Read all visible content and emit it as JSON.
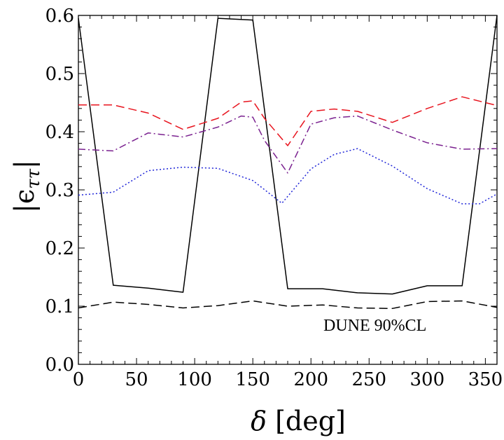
{
  "chart_data": {
    "type": "line",
    "title": "",
    "xlabel": "δ [deg]",
    "ylabel": "|ϵ_ττ|",
    "xlabel_parts": {
      "symbol": "δ",
      "unit": "[deg]"
    },
    "ylabel_parts": {
      "symbol": "ϵ",
      "subscript": "ττ"
    },
    "xlim": [
      0,
      360
    ],
    "ylim": [
      0.0,
      0.6
    ],
    "x_ticks": [
      0,
      50,
      100,
      150,
      200,
      250,
      300,
      350
    ],
    "y_ticks": [
      0.0,
      0.1,
      0.2,
      0.3,
      0.4,
      0.5,
      0.6
    ],
    "x_tick_labels": [
      "0",
      "50",
      "100",
      "150",
      "200",
      "250",
      "300",
      "350"
    ],
    "y_tick_labels": [
      "0.0",
      "0.1",
      "0.2",
      "0.3",
      "0.4",
      "0.5",
      "0.6"
    ],
    "grid": false,
    "annotation": "DUNE  90%CL",
    "series": [
      {
        "color": "#000000",
        "style": "solid",
        "x": [
          0,
          30,
          60,
          90,
          120,
          150,
          180,
          210,
          240,
          270,
          300,
          330,
          360
        ],
        "y": [
          0.595,
          0.136,
          0.131,
          0.124,
          0.595,
          0.592,
          0.13,
          0.13,
          0.123,
          0.121,
          0.135,
          0.135,
          0.6
        ]
      },
      {
        "color": "#000000",
        "style": "dashed",
        "x": [
          0,
          30,
          60,
          90,
          120,
          150,
          180,
          210,
          240,
          270,
          300,
          330,
          360
        ],
        "y": [
          0.097,
          0.107,
          0.103,
          0.097,
          0.101,
          0.109,
          0.1,
          0.102,
          0.097,
          0.096,
          0.108,
          0.109,
          0.098
        ]
      },
      {
        "color": "#e8141e",
        "style": "dashed",
        "x": [
          0,
          30,
          60,
          90,
          120,
          140,
          150,
          160,
          180,
          200,
          220,
          240,
          270,
          300,
          330,
          360
        ],
        "y": [
          0.446,
          0.446,
          0.432,
          0.404,
          0.423,
          0.451,
          0.453,
          0.423,
          0.376,
          0.435,
          0.439,
          0.435,
          0.416,
          0.44,
          0.46,
          0.445
        ]
      },
      {
        "color": "#7b2290",
        "style": "dashdot",
        "x": [
          0,
          30,
          60,
          90,
          120,
          140,
          150,
          160,
          180,
          200,
          220,
          240,
          270,
          300,
          330,
          360
        ],
        "y": [
          0.37,
          0.367,
          0.398,
          0.391,
          0.408,
          0.427,
          0.425,
          0.385,
          0.329,
          0.413,
          0.424,
          0.427,
          0.403,
          0.381,
          0.37,
          0.371
        ]
      },
      {
        "color": "#1f25d8",
        "style": "dotted",
        "x": [
          0,
          30,
          60,
          90,
          120,
          150,
          175,
          200,
          220,
          240,
          270,
          300,
          330,
          345,
          360
        ],
        "y": [
          0.291,
          0.296,
          0.333,
          0.339,
          0.337,
          0.316,
          0.277,
          0.336,
          0.361,
          0.371,
          0.341,
          0.302,
          0.276,
          0.276,
          0.293
        ]
      }
    ]
  }
}
